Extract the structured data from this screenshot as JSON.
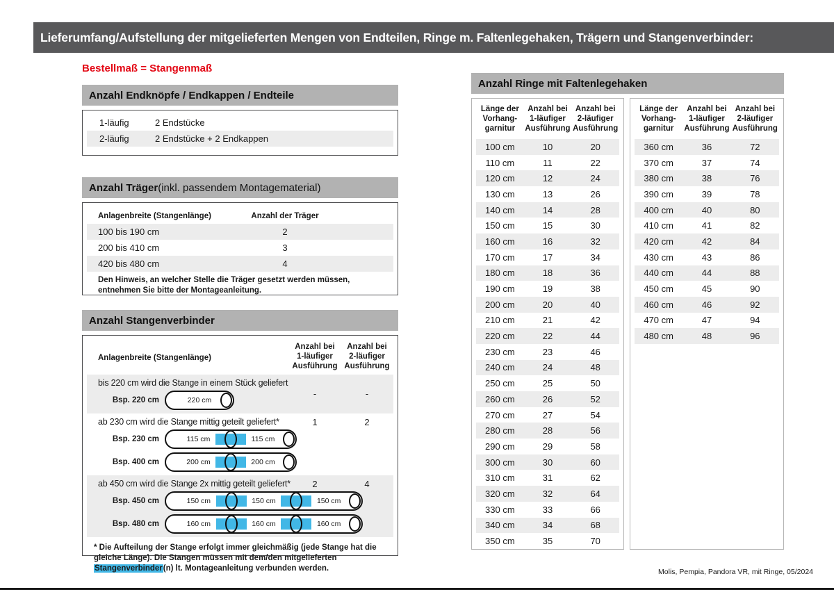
{
  "page": {
    "title": "Lieferumfang/Aufstellung der mitgelieferten Mengen von Endteilen, Ringe m. Faltenlegehaken, Trägern und Stangenverbinder:",
    "subtitle": "Bestellmaß = Stangenmaß",
    "footer": "Molis, Pempia, Pandora VR, mit Ringe, 05/2024"
  },
  "colors": {
    "bar_bg": "#58585a",
    "section_bg": "#b2b2b2",
    "stripe": "#ececec",
    "red": "#e30613",
    "blue": "#41b7e6"
  },
  "endteile": {
    "header": "Anzahl Endknöpfe / Endkappen / Endteile",
    "rows": [
      {
        "label": "1-läufig",
        "value": "2 Endstücke"
      },
      {
        "label": "2-läufig",
        "value": "2 Endstücke + 2 Endkappen"
      }
    ]
  },
  "traeger": {
    "header_bold": "Anzahl Träger",
    "header_rest": " (inkl. passendem Montagematerial)",
    "col1": "Anlagenbreite (Stangenlänge)",
    "col2": "Anzahl der Träger",
    "rows": [
      {
        "range": "100 bis 190 cm",
        "count": "2"
      },
      {
        "range": "200 bis 410 cm",
        "count": "3"
      },
      {
        "range": "420 bis 480 cm",
        "count": "4"
      }
    ],
    "note": "Den Hinweis, an welcher Stelle die Träger gesetzt werden müssen, entnehmen Sie bitte der Montageanleitung."
  },
  "verbinder": {
    "header": "Anzahl Stangenverbinder",
    "col1": "Anlagenbreite (Stangenlänge)",
    "col2": "Anzahl bei\n1-läufiger\nAusführung",
    "col3": "Anzahl bei\n2-läufiger\nAusführung",
    "rows": [
      {
        "text": "bis 220 cm wird die Stange in einem Stück geliefert",
        "count1": "-",
        "count2": "-",
        "examples": [
          {
            "label": "Bsp. 220 cm",
            "segments": [
              "220 cm"
            ]
          }
        ]
      },
      {
        "text": "ab 230 cm wird die Stange mittig geteilt geliefert*",
        "count1": "1",
        "count2": "2",
        "examples": [
          {
            "label": "Bsp. 230 cm",
            "segments": [
              "115 cm",
              "115 cm"
            ]
          },
          {
            "label": "Bsp. 400 cm",
            "segments": [
              "200 cm",
              "200 cm"
            ]
          }
        ]
      },
      {
        "text": "ab 450 cm wird die Stange 2x mittig geteilt geliefert*",
        "count1": "2",
        "count2": "4",
        "examples": [
          {
            "label": "Bsp. 450 cm",
            "segments": [
              "150 cm",
              "150 cm",
              "150 cm"
            ]
          },
          {
            "label": "Bsp. 480 cm",
            "segments": [
              "160 cm",
              "160 cm",
              "160 cm"
            ]
          }
        ]
      }
    ],
    "footnote_pre": "* Die Aufteilung der Stange erfolgt immer gleichmäßig (jede Stange hat die gleiche Länge). Die Stangen müssen mit dem/den mitgelieferten ",
    "footnote_highlight": "Stangenverbinder",
    "footnote_post": "(n) lt. Montageanleitung verbunden werden."
  },
  "ringe": {
    "header": "Anzahl Ringe mit Faltenlegehaken",
    "col1": "Länge der\nVorhang-\ngarnitur",
    "col2": "Anzahl bei\n1-läufiger\nAusführung",
    "col3": "Anzahl bei\n2-läufiger\nAusführung",
    "table1": [
      [
        "100 cm",
        "10",
        "20"
      ],
      [
        "110 cm",
        "11",
        "22"
      ],
      [
        "120 cm",
        "12",
        "24"
      ],
      [
        "130 cm",
        "13",
        "26"
      ],
      [
        "140 cm",
        "14",
        "28"
      ],
      [
        "150 cm",
        "15",
        "30"
      ],
      [
        "160 cm",
        "16",
        "32"
      ],
      [
        "170 cm",
        "17",
        "34"
      ],
      [
        "180 cm",
        "18",
        "36"
      ],
      [
        "190 cm",
        "19",
        "38"
      ],
      [
        "200 cm",
        "20",
        "40"
      ],
      [
        "210 cm",
        "21",
        "42"
      ],
      [
        "220 cm",
        "22",
        "44"
      ],
      [
        "230 cm",
        "23",
        "46"
      ],
      [
        "240 cm",
        "24",
        "48"
      ],
      [
        "250 cm",
        "25",
        "50"
      ],
      [
        "260 cm",
        "26",
        "52"
      ],
      [
        "270 cm",
        "27",
        "54"
      ],
      [
        "280 cm",
        "28",
        "56"
      ],
      [
        "290 cm",
        "29",
        "58"
      ],
      [
        "300 cm",
        "30",
        "60"
      ],
      [
        "310 cm",
        "31",
        "62"
      ],
      [
        "320 cm",
        "32",
        "64"
      ],
      [
        "330 cm",
        "33",
        "66"
      ],
      [
        "340 cm",
        "34",
        "68"
      ],
      [
        "350 cm",
        "35",
        "70"
      ]
    ],
    "table2": [
      [
        "360 cm",
        "36",
        "72"
      ],
      [
        "370 cm",
        "37",
        "74"
      ],
      [
        "380 cm",
        "38",
        "76"
      ],
      [
        "390 cm",
        "39",
        "78"
      ],
      [
        "400 cm",
        "40",
        "80"
      ],
      [
        "410 cm",
        "41",
        "82"
      ],
      [
        "420 cm",
        "42",
        "84"
      ],
      [
        "430 cm",
        "43",
        "86"
      ],
      [
        "440 cm",
        "44",
        "88"
      ],
      [
        "450 cm",
        "45",
        "90"
      ],
      [
        "460 cm",
        "46",
        "92"
      ],
      [
        "470 cm",
        "47",
        "94"
      ],
      [
        "480 cm",
        "48",
        "96"
      ]
    ]
  }
}
